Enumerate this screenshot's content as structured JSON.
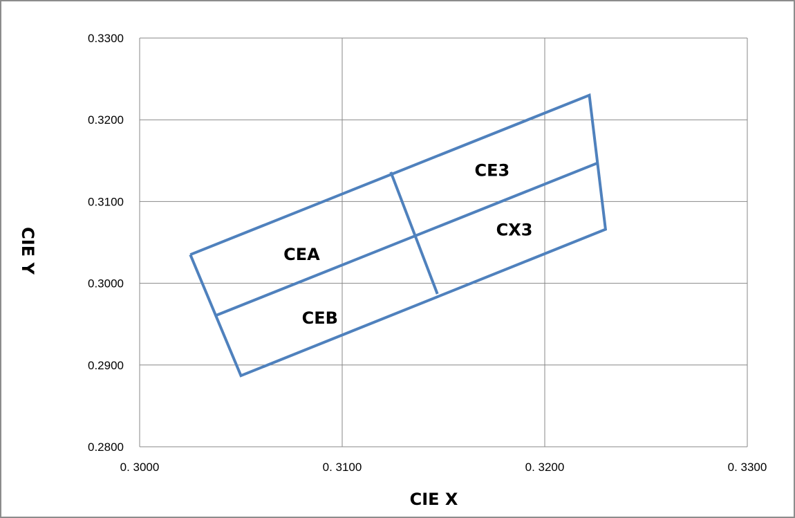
{
  "chart_data": {
    "type": "line",
    "xlabel": "CIE  X",
    "ylabel": "CIE  Y",
    "xlim": [
      0.3,
      0.33
    ],
    "ylim": [
      0.28,
      0.33
    ],
    "grid": true,
    "x_ticks": [
      0.3,
      0.31,
      0.32,
      0.33
    ],
    "x_tick_labels": [
      "0. 3000",
      "0. 3100",
      "0. 3200",
      "0. 3300"
    ],
    "y_ticks": [
      0.28,
      0.29,
      0.3,
      0.31,
      0.32,
      0.33
    ],
    "y_tick_labels": [
      "0.2800",
      "0.2900",
      "0.3000",
      "0.3100",
      "0.3200",
      "0.3300"
    ],
    "line_color": "#4f81bd",
    "segments": [
      {
        "points": [
          [
            0.3025,
            0.3035
          ],
          [
            0.3222,
            0.323
          ],
          [
            0.323,
            0.3066
          ],
          [
            0.305,
            0.2887
          ],
          [
            0.3025,
            0.3035
          ]
        ]
      },
      {
        "points": [
          [
            0.3037,
            0.296
          ],
          [
            0.3226,
            0.3147
          ]
        ]
      },
      {
        "points": [
          [
            0.3124,
            0.3136
          ],
          [
            0.3147,
            0.2987
          ]
        ]
      }
    ],
    "regions": [
      {
        "label": "CEA",
        "x": 0.308,
        "y": 0.3036
      },
      {
        "label": "CEB",
        "x": 0.3089,
        "y": 0.2958
      },
      {
        "label": "CE3",
        "x": 0.3174,
        "y": 0.3139
      },
      {
        "label": "CX3",
        "x": 0.3185,
        "y": 0.3066
      }
    ]
  }
}
